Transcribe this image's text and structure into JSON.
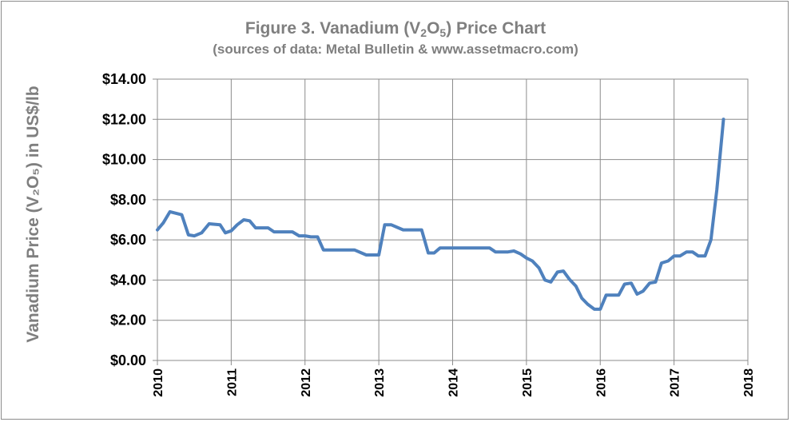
{
  "chart_data": {
    "type": "line",
    "title_prefix": "Figure 3. Vanadium (V",
    "title_sub1": "2",
    "title_mid": "O",
    "title_sub2": "5",
    "title_suffix": ") Price Chart",
    "subtitle": "(sources of data: Metal Bulletin & www.assetmacro.com)",
    "ylabel": "Vanadium Price (V₂O₅) in US$/lb",
    "xlabel": "",
    "xlim": [
      2010,
      2018
    ],
    "ylim": [
      0,
      14
    ],
    "grid": true,
    "legend": "none",
    "x_tick_labels": [
      "2010",
      "2011",
      "2012",
      "2013",
      "2014",
      "2015",
      "2016",
      "2017",
      "2018"
    ],
    "y_tick_labels": [
      "$0.00",
      "$2.00",
      "$4.00",
      "$6.00",
      "$8.00",
      "$10.00",
      "$12.00",
      "$14.00"
    ],
    "series": [
      {
        "color": "#4f81bd",
        "x": [
          2010.0,
          2010.08,
          2010.17,
          2010.33,
          2010.42,
          2010.5,
          2010.6,
          2010.7,
          2010.85,
          2010.92,
          2011.0,
          2011.08,
          2011.17,
          2011.25,
          2011.33,
          2011.42,
          2011.5,
          2011.58,
          2011.67,
          2011.75,
          2011.83,
          2011.92,
          2012.0,
          2012.08,
          2012.17,
          2012.25,
          2012.33,
          2012.5,
          2012.67,
          2012.83,
          2012.92,
          2013.0,
          2013.08,
          2013.17,
          2013.33,
          2013.5,
          2013.58,
          2013.67,
          2013.75,
          2013.83,
          2014.0,
          2014.25,
          2014.5,
          2014.58,
          2014.67,
          2014.75,
          2014.83,
          2014.92,
          2015.0,
          2015.08,
          2015.17,
          2015.25,
          2015.33,
          2015.42,
          2015.5,
          2015.58,
          2015.67,
          2015.75,
          2015.83,
          2015.92,
          2016.0,
          2016.08,
          2016.17,
          2016.25,
          2016.33,
          2016.42,
          2016.5,
          2016.58,
          2016.67,
          2016.75,
          2016.83,
          2016.92,
          2017.0,
          2017.08,
          2017.17,
          2017.25,
          2017.33,
          2017.42,
          2017.5,
          2017.58,
          2017.67
        ],
        "y": [
          6.5,
          6.85,
          7.4,
          7.25,
          6.25,
          6.2,
          6.35,
          6.8,
          6.75,
          6.35,
          6.45,
          6.75,
          7.0,
          6.95,
          6.6,
          6.6,
          6.6,
          6.4,
          6.4,
          6.4,
          6.4,
          6.2,
          6.2,
          6.15,
          6.15,
          5.5,
          5.5,
          5.5,
          5.5,
          5.25,
          5.25,
          5.25,
          6.75,
          6.75,
          6.5,
          6.5,
          6.5,
          5.35,
          5.35,
          5.6,
          5.6,
          5.6,
          5.6,
          5.4,
          5.4,
          5.4,
          5.45,
          5.3,
          5.1,
          4.95,
          4.6,
          4.0,
          3.9,
          4.4,
          4.45,
          4.05,
          3.7,
          3.1,
          2.8,
          2.55,
          2.55,
          3.25,
          3.25,
          3.25,
          3.8,
          3.85,
          3.3,
          3.45,
          3.85,
          3.9,
          4.85,
          4.95,
          5.2,
          5.2,
          5.4,
          5.4,
          5.2,
          5.2,
          6.0,
          8.5,
          12.0
        ]
      }
    ]
  }
}
